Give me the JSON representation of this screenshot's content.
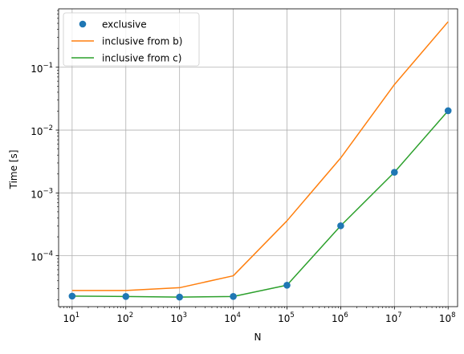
{
  "chart_data": {
    "type": "line",
    "title": "",
    "xlabel": "N",
    "ylabel": "Time [s]",
    "xscale": "log",
    "yscale": "log",
    "xlim": [
      5.6,
      150000000
    ],
    "ylim": [
      1.55e-05,
      0.85
    ],
    "grid": true,
    "legend_position": "top-left",
    "x": [
      10,
      100,
      1000,
      10000,
      100000,
      1000000,
      10000000,
      100000000
    ],
    "x_tick_labels": [
      {
        "base": "10",
        "exp": "1"
      },
      {
        "base": "10",
        "exp": "2"
      },
      {
        "base": "10",
        "exp": "3"
      },
      {
        "base": "10",
        "exp": "4"
      },
      {
        "base": "10",
        "exp": "5"
      },
      {
        "base": "10",
        "exp": "6"
      },
      {
        "base": "10",
        "exp": "7"
      },
      {
        "base": "10",
        "exp": "8"
      }
    ],
    "y_ticks": [
      0.0001,
      0.001,
      0.01,
      0.1
    ],
    "y_tick_labels": [
      {
        "base": "10",
        "exp": "−4"
      },
      {
        "base": "10",
        "exp": "−3"
      },
      {
        "base": "10",
        "exp": "−2"
      },
      {
        "base": "10",
        "exp": "−1"
      }
    ],
    "series": [
      {
        "name": "exclusive",
        "style": "markers",
        "color": "#1f77b4",
        "values": [
          2.28e-05,
          2.25e-05,
          2.2e-05,
          2.25e-05,
          3.4e-05,
          0.0003,
          0.00213,
          0.0203
        ]
      },
      {
        "name": "inclusive from b)",
        "style": "line",
        "color": "#ff7f0e",
        "values": [
          2.8e-05,
          2.8e-05,
          3.1e-05,
          4.8e-05,
          0.00036,
          0.0036,
          0.053,
          0.53
        ]
      },
      {
        "name": "inclusive from c)",
        "style": "line",
        "color": "#2ca02c",
        "values": [
          2.28e-05,
          2.25e-05,
          2.2e-05,
          2.25e-05,
          3.4e-05,
          0.0003,
          0.00213,
          0.0203
        ]
      }
    ]
  }
}
